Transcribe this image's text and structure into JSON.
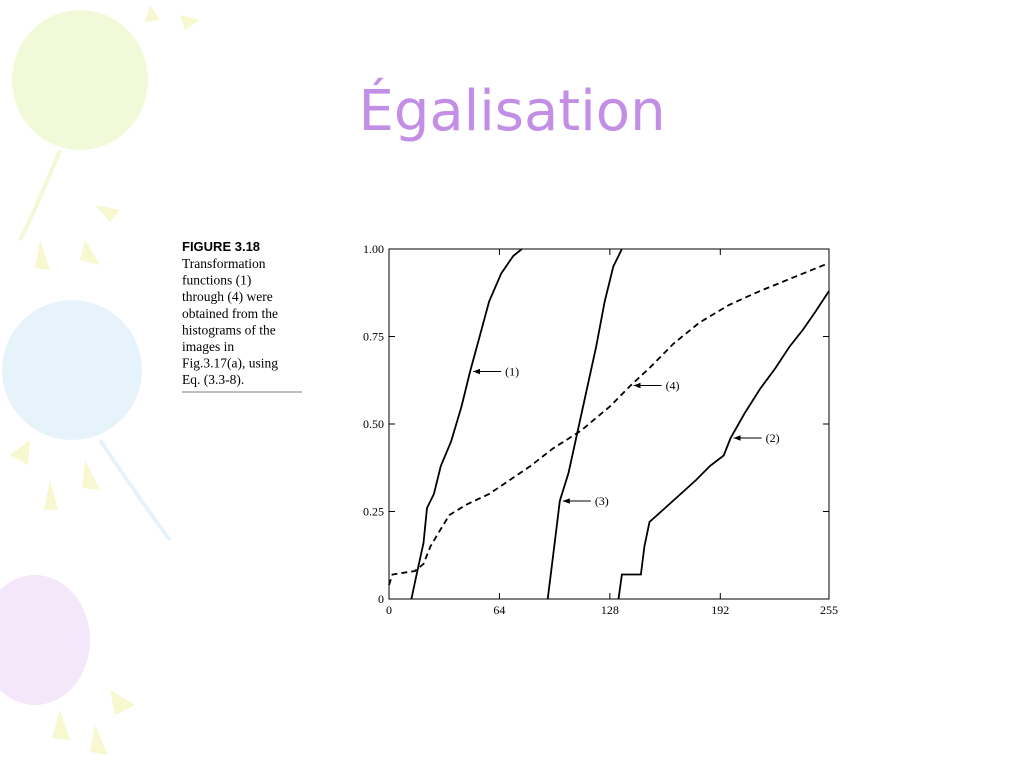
{
  "title": "Égalisation",
  "figure": {
    "label": "FIGURE 3.18",
    "caption_lines": [
      "Transformation",
      "functions (1)",
      "through (4) were",
      "obtained from the",
      "histograms of the",
      "images in",
      "Fig.3.17(a), using",
      "Eq. (3.3-8)."
    ]
  },
  "chart_data": {
    "type": "line",
    "xlim": [
      0,
      255
    ],
    "xticks": [
      0,
      64,
      128,
      192,
      255
    ],
    "ylim": [
      0,
      1
    ],
    "yticks": [
      0,
      0.25,
      {
        "value": 0.5,
        "label": "0.50"
      },
      0.75,
      {
        "value": 1,
        "label": "1.00"
      }
    ],
    "series": [
      {
        "name": "(1)",
        "color": "#000000",
        "dashed": false,
        "x": [
          13,
          16,
          20,
          22,
          26,
          30,
          36,
          42,
          47,
          52,
          58,
          65,
          72,
          77
        ],
        "values": [
          0,
          0.07,
          0.16,
          0.26,
          0.3,
          0.38,
          0.45,
          0.55,
          0.65,
          0.74,
          0.85,
          0.93,
          0.98,
          1.0
        ]
      },
      {
        "name": "(2)",
        "color": "#000000",
        "dashed": false,
        "x": [
          133,
          135,
          146,
          148,
          151,
          160,
          169,
          178,
          186,
          194,
          198,
          206,
          215,
          224,
          232,
          240,
          247,
          255
        ],
        "values": [
          0,
          0.07,
          0.07,
          0.15,
          0.22,
          0.26,
          0.3,
          0.34,
          0.38,
          0.41,
          0.46,
          0.53,
          0.6,
          0.66,
          0.72,
          0.77,
          0.82,
          0.88
        ]
      },
      {
        "name": "(3)",
        "color": "#000000",
        "dashed": false,
        "x": [
          92,
          94,
          97,
          99,
          104,
          108,
          112,
          116,
          120,
          125,
          130,
          135
        ],
        "values": [
          0,
          0.08,
          0.2,
          0.28,
          0.36,
          0.45,
          0.54,
          0.63,
          0.72,
          0.85,
          0.95,
          1.0
        ]
      },
      {
        "name": "(4)",
        "color": "#000000",
        "dashed": true,
        "x": [
          0,
          2,
          15,
          20,
          24,
          30,
          35,
          45,
          58,
          70,
          82,
          95,
          111,
          128,
          140,
          151,
          165,
          180,
          197,
          215,
          235,
          255
        ],
        "values": [
          0.04,
          0.07,
          0.08,
          0.1,
          0.15,
          0.2,
          0.24,
          0.27,
          0.3,
          0.34,
          0.38,
          0.43,
          0.48,
          0.55,
          0.61,
          0.66,
          0.73,
          0.79,
          0.84,
          0.88,
          0.92,
          0.96
        ]
      }
    ]
  }
}
